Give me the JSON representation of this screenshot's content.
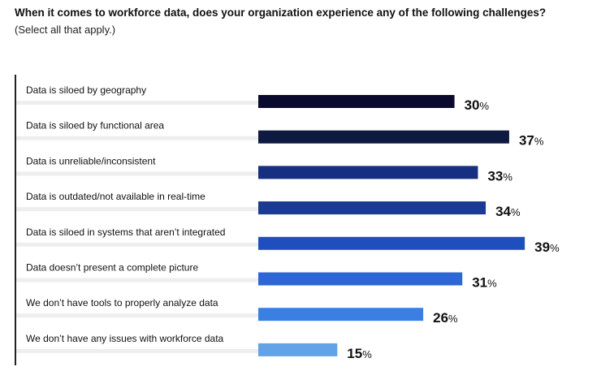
{
  "chart_data": {
    "type": "bar",
    "title": "When it comes to workforce data, does your organization experience any of the following challenges?",
    "subtitle": "(Select all that apply.)",
    "categories": [
      "Data is siloed by geography",
      "Data is siloed by functional area",
      "Data is unreliable/inconsistent",
      "Data is outdated/not available in real-time",
      "Data is siloed in systems that aren’t integrated",
      "Data doesn’t present a complete picture",
      "We don’t have tools to properly analyze data",
      "We don’t have any issues with workforce data"
    ],
    "values": [
      30,
      37,
      33,
      34,
      39,
      31,
      26,
      15
    ],
    "unit": "%",
    "colors": [
      "#0a0b2c",
      "#0e1a3f",
      "#162f80",
      "#1a3a93",
      "#1f4fbf",
      "#2d66d5",
      "#3a80e3",
      "#62a2e6"
    ],
    "xlabel": "",
    "ylabel": ""
  }
}
